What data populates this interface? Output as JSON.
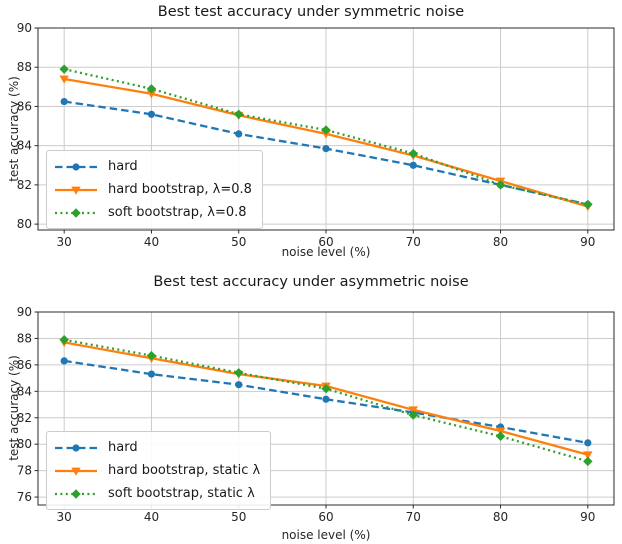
{
  "figure_title": "",
  "chart_data": [
    {
      "type": "line",
      "title": "Best test accuracy under symmetric noise",
      "xlabel": "noise level (%)",
      "ylabel": "test accuracy (%)",
      "x": [
        30,
        40,
        50,
        60,
        70,
        80,
        90
      ],
      "xticks": [
        30,
        40,
        50,
        60,
        70,
        80,
        90
      ],
      "yticks": [
        80,
        82,
        84,
        86,
        88,
        90
      ],
      "xlim": [
        27,
        93
      ],
      "ylim": [
        79.7,
        90
      ],
      "grid": true,
      "legend_position": "lower left",
      "series": [
        {
          "name": "hard",
          "color": "#1f77b4",
          "linestyle": "dashed",
          "marker": "circle",
          "values": [
            86.25,
            85.6,
            84.6,
            83.85,
            83.0,
            82.0,
            81.0
          ]
        },
        {
          "name": "hard bootstrap, λ=0.8",
          "color": "#ff7f0e",
          "linestyle": "solid",
          "marker": "triangle-down",
          "values": [
            87.4,
            86.65,
            85.55,
            84.6,
            83.5,
            82.2,
            80.9
          ]
        },
        {
          "name": "soft bootstrap, λ=0.8",
          "color": "#2ca02c",
          "linestyle": "dotted",
          "marker": "diamond",
          "values": [
            87.9,
            86.9,
            85.6,
            84.8,
            83.6,
            82.0,
            81.0
          ]
        }
      ]
    },
    {
      "type": "line",
      "title": "Best test accuracy under asymmetric noise",
      "xlabel": "noise level (%)",
      "ylabel": "test accuracy (%)",
      "x": [
        30,
        40,
        50,
        60,
        70,
        80,
        90
      ],
      "xticks": [
        30,
        40,
        50,
        60,
        70,
        80,
        90
      ],
      "yticks": [
        76,
        78,
        80,
        82,
        84,
        86,
        88,
        90
      ],
      "xlim": [
        27,
        93
      ],
      "ylim": [
        75.4,
        90
      ],
      "grid": true,
      "legend_position": "lower left",
      "series": [
        {
          "name": "hard",
          "color": "#1f77b4",
          "linestyle": "dashed",
          "marker": "circle",
          "values": [
            86.3,
            85.3,
            84.5,
            83.4,
            82.4,
            81.3,
            80.1
          ]
        },
        {
          "name": "hard bootstrap, static λ",
          "color": "#ff7f0e",
          "linestyle": "solid",
          "marker": "triangle-down",
          "values": [
            87.7,
            86.5,
            85.3,
            84.4,
            82.6,
            81.0,
            79.2
          ]
        },
        {
          "name": "soft bootstrap, static λ",
          "color": "#2ca02c",
          "linestyle": "dotted",
          "marker": "diamond",
          "values": [
            87.9,
            86.7,
            85.4,
            84.2,
            82.2,
            80.6,
            78.7
          ]
        }
      ]
    }
  ],
  "style": {
    "grid_color": "#cccccc",
    "spine_color": "#2b2b2b",
    "tick_label_color": "#262626"
  }
}
